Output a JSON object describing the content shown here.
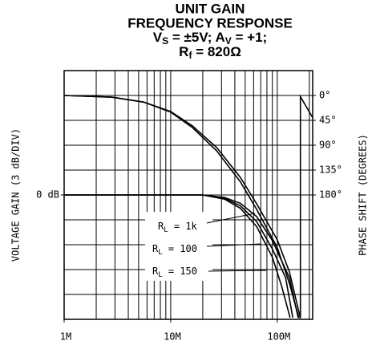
{
  "chart_data": {
    "type": "line",
    "title": [
      "UNIT GAIN",
      "FREQUENCY RESPONSE"
    ],
    "subtitle": [
      [
        "V",
        "S",
        " = ±5V; A",
        "V",
        " = +1;"
      ],
      [
        "R",
        "f",
        " = 820Ω"
      ]
    ],
    "ylabel": "VOLTAGE GAIN (3 dB/DIV)",
    "y2label": "PHASE SHIFT (DEGREES)",
    "log_x": true,
    "grid": true,
    "xlim": [
      1000000,
      215000000
    ],
    "xticks": [
      {
        "value": 1000000,
        "label": "1M"
      },
      {
        "value": 10000000,
        "label": "10M"
      },
      {
        "value": 100000000,
        "label": "100M"
      }
    ],
    "xgrid": [
      2000000,
      3000000,
      4000000,
      5000000,
      6000000,
      7000000,
      8000000,
      9000000,
      10000000,
      20000000,
      30000000,
      40000000,
      50000000,
      60000000,
      70000000,
      80000000,
      90000000,
      100000000,
      200000000
    ],
    "ylim": [
      -15,
      15
    ],
    "yticks": [
      {
        "value": 0,
        "label": "0 dB"
      }
    ],
    "ygrid": [
      -12,
      -9,
      -6,
      -3,
      0,
      3,
      6,
      9,
      12
    ],
    "y2lim": [
      405,
      -45
    ],
    "y2ticks": [
      {
        "value": 0,
        "label": "0°"
      },
      {
        "value": 45,
        "label": "45°"
      },
      {
        "value": 90,
        "label": "90°"
      },
      {
        "value": 135,
        "label": "135°"
      },
      {
        "value": 180,
        "label": "180°"
      }
    ],
    "series": [
      {
        "color": "#000000",
        "axis": "y2",
        "x": [
          1000000,
          2800000,
          5600000,
          10000000,
          16000000,
          27000000,
          45000000,
          64000000,
          100000000,
          130000000,
          165000000,
          165000000,
          215000000
        ],
        "values": [
          0,
          3,
          12,
          29,
          55,
          94,
          148,
          196,
          261,
          319,
          403,
          2,
          40
        ]
      },
      {
        "color": "#000000",
        "axis": "y2",
        "x": [
          1000000,
          2800000,
          5600000,
          10000000,
          16000000,
          27000000,
          45000000,
          64000000,
          100000000,
          130000000,
          160000000
        ],
        "values": [
          0,
          3,
          12,
          30,
          58,
          100,
          156,
          206,
          275,
          340,
          403
        ]
      },
      {
        "color": "#000000",
        "x": [
          1000000,
          20000000,
          32000000,
          45000000,
          64000000,
          90000000,
          130000000,
          157000000
        ],
        "values": [
          0,
          0,
          -0.3,
          -1,
          -2.6,
          -5.5,
          -10,
          -14.8
        ]
      },
      {
        "color": "#000000",
        "x": [
          1000000,
          20000000,
          32000000,
          45000000,
          64000000,
          90000000,
          120000000,
          140000000
        ],
        "values": [
          0,
          0,
          -0.4,
          -1.3,
          -3.2,
          -6.5,
          -10,
          -14.8
        ]
      },
      {
        "color": "#000000",
        "x": [
          1000000,
          20000000,
          32000000,
          45000000,
          64000000,
          90000000,
          110000000,
          132000000
        ],
        "values": [
          0,
          0,
          -0.5,
          -1.6,
          -3.8,
          -7.5,
          -11,
          -14.8
        ]
      }
    ],
    "annotations": [
      {
        "main": "R",
        "sub": "L",
        "text": " = 1k"
      },
      {
        "main": "R",
        "sub": "L",
        "text": " = 100"
      },
      {
        "main": "R",
        "sub": "L",
        "text": " = 150"
      }
    ]
  }
}
